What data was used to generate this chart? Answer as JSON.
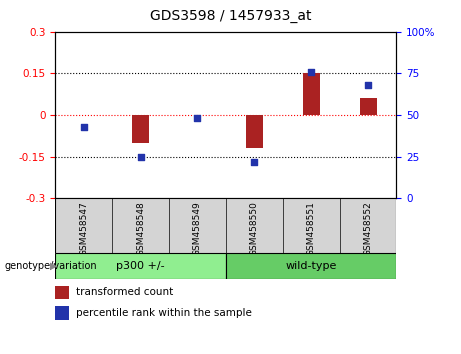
{
  "title": "GDS3598 / 1457933_at",
  "samples": [
    "GSM458547",
    "GSM458548",
    "GSM458549",
    "GSM458550",
    "GSM458551",
    "GSM458552"
  ],
  "red_bars": [
    0.0,
    -0.1,
    0.0,
    -0.12,
    0.15,
    0.06
  ],
  "blue_dots": [
    43,
    25,
    48,
    22,
    76,
    68
  ],
  "ylim_left": [
    -0.3,
    0.3
  ],
  "ylim_right": [
    0,
    100
  ],
  "yticks_left": [
    -0.3,
    -0.15,
    0,
    0.15,
    0.3
  ],
  "yticks_right": [
    0,
    25,
    50,
    75,
    100
  ],
  "ytick_right_labels": [
    "0",
    "25",
    "50",
    "75",
    "100%"
  ],
  "bar_color": "#AA2222",
  "dot_color": "#2233AA",
  "plot_bg": "#FFFFFF",
  "gray_box_color": "#D4D4D4",
  "group1_color": "#90EE90",
  "group2_color": "#66CC66",
  "legend_red_label": "transformed count",
  "legend_blue_label": "percentile rank within the sample",
  "genotype_label": "genotype/variation",
  "bar_width": 0.3
}
